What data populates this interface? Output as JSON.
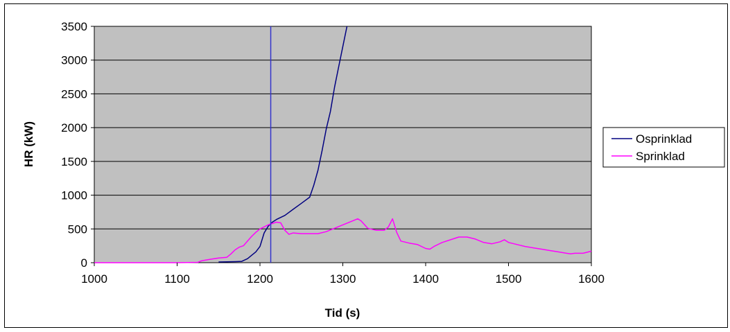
{
  "chart_data": {
    "type": "line",
    "xlabel": "Tid (s)",
    "ylabel": "HR (kW)",
    "xlim": [
      1000,
      1600
    ],
    "ylim": [
      0,
      3500
    ],
    "xticks": [
      "1000",
      "1100",
      "1200",
      "1300",
      "1400",
      "1500",
      "1600"
    ],
    "yticks": [
      "0",
      "500",
      "1000",
      "1500",
      "2000",
      "2500",
      "3000",
      "3500"
    ],
    "grid": "horizontal",
    "legend": "right",
    "plot_background": "#c0c0c0",
    "vertical_marker": {
      "x": 1213,
      "color": "#3333cc"
    },
    "series": [
      {
        "name": "Osprinklad",
        "color": "#000080",
        "x": [
          1150,
          1160,
          1170,
          1178,
          1185,
          1190,
          1195,
          1200,
          1205,
          1210,
          1215,
          1220,
          1230,
          1240,
          1250,
          1260,
          1265,
          1270,
          1275,
          1280,
          1285,
          1290,
          1295,
          1300,
          1305
        ],
        "y": [
          10,
          12,
          15,
          20,
          60,
          110,
          160,
          240,
          440,
          540,
          600,
          640,
          700,
          790,
          880,
          970,
          1150,
          1370,
          1660,
          1980,
          2240,
          2600,
          2900,
          3200,
          3500
        ]
      },
      {
        "name": "Sprinklad",
        "color": "#ff00ff",
        "x": [
          1000,
          1100,
          1125,
          1130,
          1140,
          1150,
          1160,
          1165,
          1170,
          1175,
          1180,
          1185,
          1190,
          1195,
          1200,
          1210,
          1220,
          1225,
          1230,
          1235,
          1240,
          1250,
          1260,
          1270,
          1280,
          1290,
          1300,
          1310,
          1318,
          1322,
          1330,
          1340,
          1350,
          1355,
          1360,
          1365,
          1370,
          1380,
          1390,
          1400,
          1405,
          1410,
          1420,
          1430,
          1440,
          1450,
          1460,
          1470,
          1480,
          1490,
          1495,
          1500,
          1510,
          1520,
          1530,
          1540,
          1550,
          1560,
          1570,
          1575,
          1580,
          1590,
          1600
        ],
        "y": [
          0,
          0,
          5,
          30,
          50,
          70,
          80,
          130,
          190,
          230,
          250,
          320,
          390,
          450,
          500,
          560,
          600,
          590,
          480,
          420,
          440,
          430,
          430,
          430,
          460,
          510,
          560,
          610,
          650,
          620,
          510,
          480,
          480,
          530,
          650,
          450,
          320,
          290,
          270,
          210,
          200,
          240,
          300,
          340,
          380,
          380,
          350,
          300,
          280,
          310,
          340,
          300,
          270,
          240,
          220,
          200,
          180,
          160,
          140,
          130,
          140,
          140,
          170
        ]
      }
    ]
  }
}
